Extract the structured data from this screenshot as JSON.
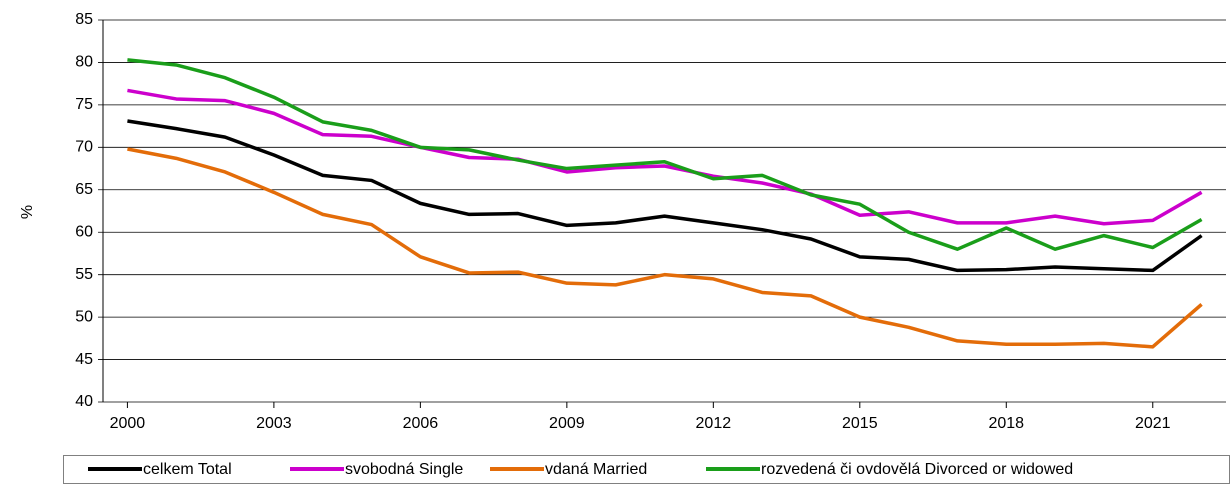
{
  "chart_data": {
    "type": "line",
    "y_label": "%",
    "x": [
      2000,
      2001,
      2002,
      2003,
      2004,
      2005,
      2006,
      2007,
      2008,
      2009,
      2010,
      2011,
      2012,
      2013,
      2014,
      2015,
      2016,
      2017,
      2018,
      2019,
      2020,
      2021,
      2022
    ],
    "xlim": [
      1999.5,
      2022.5
    ],
    "xticks": [
      2000,
      2003,
      2006,
      2009,
      2012,
      2015,
      2018,
      2021
    ],
    "ylim": [
      40,
      85
    ],
    "yticks": [
      40,
      45,
      50,
      55,
      60,
      65,
      70,
      75,
      80,
      85
    ],
    "grid": true,
    "legend": "bottom",
    "series": [
      {
        "name": "celkem Total",
        "color": "#000000",
        "values": [
          73.1,
          72.2,
          71.2,
          69.1,
          66.7,
          66.1,
          63.4,
          62.1,
          62.2,
          60.8,
          61.1,
          61.9,
          61.1,
          60.3,
          59.2,
          57.1,
          56.8,
          55.5,
          55.6,
          55.9,
          55.7,
          55.5,
          59.6
        ]
      },
      {
        "name": "svobodná Single",
        "color": "#cc00cc",
        "values": [
          76.7,
          75.7,
          75.5,
          74.0,
          71.5,
          71.3,
          70.0,
          68.8,
          68.6,
          67.1,
          67.6,
          67.8,
          66.6,
          65.8,
          64.5,
          62.0,
          62.4,
          61.1,
          61.1,
          61.9,
          61.0,
          61.4,
          64.7
        ]
      },
      {
        "name": "vdaná Married",
        "color": "#e36c09",
        "values": [
          69.8,
          68.7,
          67.1,
          64.7,
          62.1,
          60.9,
          57.1,
          55.2,
          55.3,
          54.0,
          53.8,
          55.0,
          54.5,
          52.9,
          52.5,
          50.0,
          48.8,
          47.2,
          46.8,
          46.8,
          46.9,
          46.5,
          51.5
        ]
      },
      {
        "name": "rozvedená či ovdovělá Divorced or widowed",
        "color": "#1a9e1a",
        "values": [
          80.3,
          79.7,
          78.2,
          75.9,
          73.0,
          72.0,
          70.0,
          69.7,
          68.5,
          67.5,
          67.9,
          68.3,
          66.3,
          66.7,
          64.4,
          63.3,
          60.0,
          58.0,
          60.5,
          58.0,
          59.6,
          58.2,
          61.5
        ]
      }
    ]
  }
}
